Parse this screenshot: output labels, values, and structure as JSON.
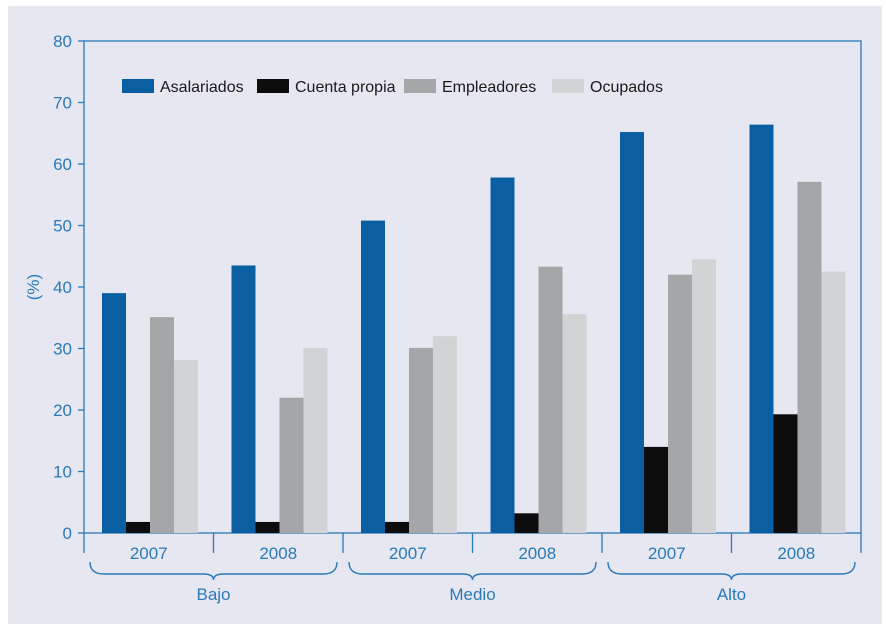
{
  "chart_data": {
    "type": "bar",
    "title": "",
    "ylabel": "(%)",
    "xlabel": "",
    "ylim": [
      0,
      80
    ],
    "yticks": [
      0,
      10,
      20,
      30,
      40,
      50,
      60,
      70,
      80
    ],
    "groups": [
      {
        "label": "Bajo",
        "years": [
          "2007",
          "2008"
        ]
      },
      {
        "label": "Medio",
        "years": [
          "2007",
          "2008"
        ]
      },
      {
        "label": "Alto",
        "years": [
          "2007",
          "2008"
        ]
      }
    ],
    "categories": [
      "Bajo 2007",
      "Bajo 2008",
      "Medio 2007",
      "Medio 2008",
      "Alto 2007",
      "Alto 2008"
    ],
    "series": [
      {
        "name": "Asalariados",
        "color": "#0a5fa3",
        "values": [
          39.0,
          43.5,
          50.8,
          57.8,
          65.2,
          66.4
        ]
      },
      {
        "name": "Cuenta propia",
        "color": "#0c0c0c",
        "values": [
          1.8,
          1.8,
          1.8,
          3.2,
          14.0,
          19.3
        ]
      },
      {
        "name": "Empleadores",
        "color": "#a5a6a8",
        "values": [
          35.1,
          22.0,
          30.1,
          43.3,
          42.0,
          57.1
        ]
      },
      {
        "name": "Ocupados",
        "color": "#d2d3d5",
        "values": [
          28.1,
          30.1,
          32.0,
          35.6,
          44.5,
          42.5
        ]
      }
    ],
    "legend_position": "top-left",
    "grid": false,
    "axis_color": "#2a7ab8"
  }
}
